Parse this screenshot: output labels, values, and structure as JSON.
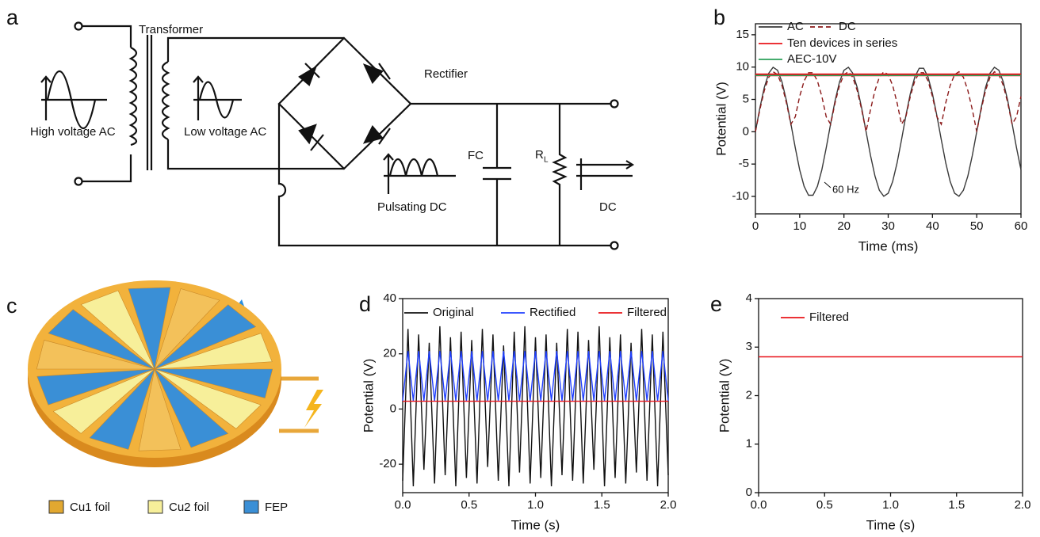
{
  "panel_labels": [
    "a",
    "b",
    "c",
    "d",
    "e"
  ],
  "circuit": {
    "transformer": "Transformer",
    "high_ac": "High voltage AC",
    "low_ac": "Low voltage AC",
    "rectifier": "Rectifier",
    "pulsating": "Pulsating DC",
    "fc": "FC",
    "r": "R",
    "r_sub": "L",
    "dc": "DC"
  },
  "panel_c_legend": [
    "Cu1 foil",
    "Cu2 foil",
    "FEP"
  ],
  "chart_data": [
    {
      "type": "line",
      "xlabel": "Time (ms)",
      "ylabel": "Potential (V)",
      "annotations": [
        "60 Hz"
      ],
      "x": [
        0,
        1,
        2,
        3,
        4,
        5,
        6,
        7,
        8,
        9,
        10,
        11,
        12,
        13,
        14,
        15,
        16,
        17,
        18,
        19,
        20,
        21,
        22,
        23,
        24,
        25,
        26,
        27,
        28,
        29,
        30,
        31,
        32,
        33,
        34,
        35,
        36,
        37,
        38,
        39,
        40,
        41,
        42,
        43,
        44,
        45,
        46,
        47,
        48,
        49,
        50,
        51,
        52,
        53,
        54,
        55,
        56,
        57,
        58,
        59,
        60
      ],
      "xlim": [
        0,
        60
      ],
      "xticks": [
        0,
        10,
        20,
        30,
        40,
        50,
        60
      ],
      "ylim": [
        -12.7,
        16.7
      ],
      "yticks": [
        -10,
        -5,
        0,
        5,
        10,
        15
      ],
      "series": [
        {
          "name": "AC",
          "color": "#3a3a3a",
          "values": [
            0,
            3.68,
            6.85,
            9.05,
            9.98,
            9.51,
            7.71,
            4.82,
            1.25,
            -2.49,
            -5.88,
            -8.44,
            -9.82,
            -9.82,
            -8.44,
            -5.88,
            -2.49,
            1.25,
            4.82,
            7.71,
            9.51,
            9.98,
            9.05,
            6.85,
            3.68,
            0,
            -3.68,
            -6.85,
            -9.05,
            -9.98,
            -9.51,
            -7.71,
            -4.82,
            -1.25,
            2.49,
            5.88,
            8.44,
            9.82,
            9.82,
            8.44,
            5.88,
            2.49,
            -1.25,
            -4.82,
            -7.71,
            -9.51,
            -9.98,
            -9.05,
            -6.85,
            -3.68,
            0,
            3.68,
            6.85,
            9.05,
            9.98,
            9.51,
            7.71,
            4.82,
            1.25,
            -2.49,
            -5.88
          ]
        },
        {
          "name": "DC",
          "color": "#8b1a1a",
          "style": "dashed",
          "values": [
            0,
            3.42,
            6.37,
            8.42,
            9.28,
            8.84,
            7.17,
            4.48,
            1.16,
            2.32,
            5.47,
            7.85,
            9.13,
            9.13,
            7.85,
            5.47,
            2.32,
            1.16,
            4.48,
            7.17,
            8.84,
            9.28,
            8.42,
            6.37,
            3.42,
            0,
            3.42,
            6.37,
            8.42,
            9.28,
            8.84,
            7.17,
            4.48,
            1.16,
            2.32,
            5.47,
            7.85,
            9.13,
            9.13,
            7.85,
            5.47,
            2.32,
            1.16,
            4.48,
            7.17,
            8.84,
            9.28,
            8.42,
            6.37,
            3.42,
            0,
            3.42,
            6.37,
            8.42,
            9.28,
            8.84,
            7.17,
            4.48,
            1.16,
            2.32,
            5.47
          ]
        },
        {
          "name": "Ten devices in series",
          "color": "#e8141a",
          "width": 3.5,
          "x": [
            0,
            60
          ],
          "values": [
            8.8,
            8.8
          ]
        },
        {
          "name": "AEC-10V",
          "color": "#2ca05a",
          "x": [
            0,
            60
          ],
          "values": [
            8.7,
            8.7
          ]
        }
      ]
    },
    {
      "type": "line",
      "xlabel": "Time (s)",
      "ylabel": "Potential (V)",
      "x": [
        0,
        0.04,
        0.08,
        0.12,
        0.16,
        0.2,
        0.24,
        0.28,
        0.32,
        0.36,
        0.4,
        0.44,
        0.48,
        0.52,
        0.56,
        0.6,
        0.64,
        0.68,
        0.72,
        0.76,
        0.8,
        0.84,
        0.88,
        0.92,
        0.96,
        1,
        1.04,
        1.08,
        1.12,
        1.16,
        1.2,
        1.24,
        1.28,
        1.32,
        1.36,
        1.4,
        1.44,
        1.48,
        1.52,
        1.56,
        1.6,
        1.64,
        1.68,
        1.72,
        1.76,
        1.8,
        1.84,
        1.88,
        1.92,
        1.96,
        2
      ],
      "xlim": [
        0,
        2
      ],
      "xticks": [
        {
          "value": 0,
          "label": "0.0"
        },
        0.5,
        {
          "value": 1,
          "label": "1.0"
        },
        1.5,
        {
          "value": 2,
          "label": "2.0"
        }
      ],
      "ylim": [
        -30.3,
        40
      ],
      "yticks": [
        -20,
        0,
        20,
        40
      ],
      "series": [
        {
          "name": "Original",
          "color": "#111111",
          "values": [
            -26,
            29,
            -28,
            27,
            -22,
            24,
            -27,
            30,
            -24,
            26,
            -28,
            28,
            -25,
            25,
            -27,
            29,
            -21,
            27,
            -26,
            23,
            -28,
            28,
            -23,
            30,
            -27,
            26,
            -25,
            27,
            -28,
            24,
            -24,
            29,
            -26,
            28,
            -27,
            25,
            -22,
            30,
            -28,
            26,
            -25,
            27,
            -27,
            24,
            -23,
            29,
            -26,
            27,
            -28,
            28,
            -24
          ]
        },
        {
          "name": "Rectified",
          "color": "#1f3fff",
          "values": [
            3,
            21,
            3,
            21,
            3,
            21,
            3,
            21,
            3,
            21,
            3,
            21,
            3,
            21,
            3,
            21,
            3,
            21,
            3,
            21,
            3,
            21,
            3,
            21,
            3,
            21,
            3,
            21,
            3,
            21,
            3,
            21,
            3,
            21,
            3,
            21,
            3,
            21,
            3,
            21,
            3,
            21,
            3,
            21,
            3,
            21,
            3,
            21,
            3,
            21,
            3
          ]
        },
        {
          "name": "Filtered",
          "color": "#e8141a",
          "x": [
            0,
            2
          ],
          "values": [
            2.8,
            2.8
          ]
        }
      ]
    },
    {
      "type": "line",
      "xlabel": "Time (s)",
      "ylabel": "Potential (V)",
      "xlim": [
        0,
        2
      ],
      "xticks": [
        {
          "value": 0,
          "label": "0.0"
        },
        0.5,
        {
          "value": 1,
          "label": "1.0"
        },
        1.5,
        {
          "value": 2,
          "label": "2.0"
        }
      ],
      "ylim": [
        0,
        4
      ],
      "yticks": [
        0,
        1,
        2,
        3,
        4
      ],
      "series": [
        {
          "name": "Filtered",
          "color": "#e8141a",
          "x": [
            0,
            2
          ],
          "values": [
            2.8,
            2.8
          ]
        }
      ]
    }
  ]
}
